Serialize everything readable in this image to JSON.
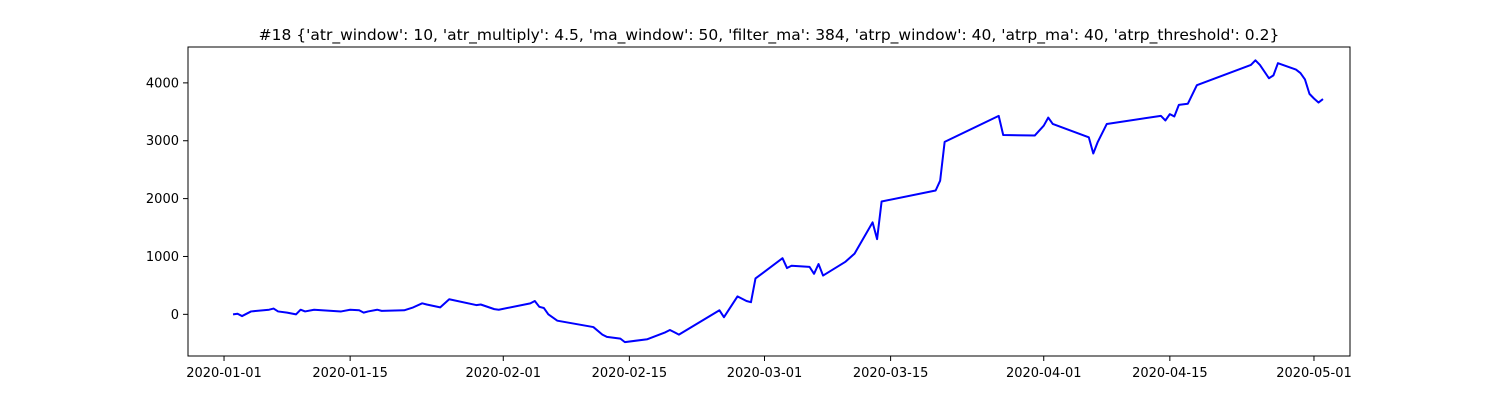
{
  "chart_data": {
    "type": "line",
    "title": "#18 {'atr_window': 10, 'atr_multiply': 4.5, 'ma_window': 50, 'filter_ma': 384, 'atrp_window': 40, 'atrp_ma': 40, 'atrp_threshold': 0.2}",
    "xlabel": "",
    "ylabel": "",
    "x_axis_type": "date",
    "xlim": [
      "2019-12-28",
      "2020-05-05"
    ],
    "ylim": [
      -720,
      4620
    ],
    "x_ticks": [
      "2020-01-01",
      "2020-01-15",
      "2020-02-01",
      "2020-02-15",
      "2020-03-01",
      "2020-03-15",
      "2020-04-01",
      "2020-04-15",
      "2020-05-01"
    ],
    "y_ticks": [
      0,
      1000,
      2000,
      3000,
      4000
    ],
    "grid": false,
    "legend": "none",
    "series": [
      {
        "color": "#0000ff",
        "points": [
          [
            "2020-01-02",
            0
          ],
          [
            "2020-01-02T12:00",
            10
          ],
          [
            "2020-01-03",
            -30
          ],
          [
            "2020-01-04",
            50
          ],
          [
            "2020-01-06",
            80
          ],
          [
            "2020-01-06T12:00",
            100
          ],
          [
            "2020-01-07",
            50
          ],
          [
            "2020-01-08",
            30
          ],
          [
            "2020-01-09",
            0
          ],
          [
            "2020-01-09T12:00",
            80
          ],
          [
            "2020-01-10",
            50
          ],
          [
            "2020-01-11",
            80
          ],
          [
            "2020-01-14",
            50
          ],
          [
            "2020-01-15",
            80
          ],
          [
            "2020-01-16",
            70
          ],
          [
            "2020-01-16T12:00",
            30
          ],
          [
            "2020-01-17",
            50
          ],
          [
            "2020-01-18",
            80
          ],
          [
            "2020-01-18T12:00",
            60
          ],
          [
            "2020-01-21",
            70
          ],
          [
            "2020-01-22",
            120
          ],
          [
            "2020-01-23",
            190
          ],
          [
            "2020-01-23T12:00",
            170
          ],
          [
            "2020-01-25",
            120
          ],
          [
            "2020-01-26",
            260
          ],
          [
            "2020-01-29",
            160
          ],
          [
            "2020-01-29T12:00",
            170
          ],
          [
            "2020-01-31",
            90
          ],
          [
            "2020-01-31T12:00",
            80
          ],
          [
            "2020-02-04",
            190
          ],
          [
            "2020-02-04T12:00",
            230
          ],
          [
            "2020-02-05",
            130
          ],
          [
            "2020-02-05T12:00",
            110
          ],
          [
            "2020-02-06",
            0
          ],
          [
            "2020-02-07",
            -110
          ],
          [
            "2020-02-11",
            -220
          ],
          [
            "2020-02-12",
            -350
          ],
          [
            "2020-02-12T12:00",
            -390
          ],
          [
            "2020-02-14",
            -420
          ],
          [
            "2020-02-14T12:00",
            -480
          ],
          [
            "2020-02-17",
            -430
          ],
          [
            "2020-02-19",
            -310
          ],
          [
            "2020-02-19T12:00",
            -270
          ],
          [
            "2020-02-20",
            -310
          ],
          [
            "2020-02-20T12:00",
            -350
          ],
          [
            "2020-02-25",
            70
          ],
          [
            "2020-02-25T12:00",
            -50
          ],
          [
            "2020-02-27",
            310
          ],
          [
            "2020-02-28",
            230
          ],
          [
            "2020-02-28T12:00",
            210
          ],
          [
            "2020-02-29",
            620
          ],
          [
            "2020-03-03",
            970
          ],
          [
            "2020-03-03T12:00",
            800
          ],
          [
            "2020-03-04",
            840
          ],
          [
            "2020-03-06",
            820
          ],
          [
            "2020-03-06T12:00",
            700
          ],
          [
            "2020-03-07",
            870
          ],
          [
            "2020-03-07T12:00",
            670
          ],
          [
            "2020-03-10",
            910
          ],
          [
            "2020-03-11",
            1050
          ],
          [
            "2020-03-13",
            1590
          ],
          [
            "2020-03-13T12:00",
            1300
          ],
          [
            "2020-03-14",
            1950
          ],
          [
            "2020-03-20",
            2140
          ],
          [
            "2020-03-20T12:00",
            2310
          ],
          [
            "2020-03-21",
            2980
          ],
          [
            "2020-03-27",
            3430
          ],
          [
            "2020-03-27T12:00",
            3100
          ],
          [
            "2020-03-31",
            3090
          ],
          [
            "2020-04-01",
            3260
          ],
          [
            "2020-04-01T12:00",
            3400
          ],
          [
            "2020-04-02",
            3290
          ],
          [
            "2020-04-06",
            3060
          ],
          [
            "2020-04-06T12:00",
            2780
          ],
          [
            "2020-04-07",
            2980
          ],
          [
            "2020-04-08",
            3290
          ],
          [
            "2020-04-14",
            3430
          ],
          [
            "2020-04-14T12:00",
            3350
          ],
          [
            "2020-04-15",
            3460
          ],
          [
            "2020-04-15T12:00",
            3420
          ],
          [
            "2020-04-16",
            3620
          ],
          [
            "2020-04-17",
            3640
          ],
          [
            "2020-04-18",
            3960
          ],
          [
            "2020-04-24",
            4310
          ],
          [
            "2020-04-24T12:00",
            4390
          ],
          [
            "2020-04-25",
            4310
          ],
          [
            "2020-04-26",
            4080
          ],
          [
            "2020-04-26T12:00",
            4130
          ],
          [
            "2020-04-27",
            4340
          ],
          [
            "2020-04-29",
            4230
          ],
          [
            "2020-04-29T12:00",
            4170
          ],
          [
            "2020-04-30",
            4060
          ],
          [
            "2020-04-30T12:00",
            3810
          ],
          [
            "2020-05-01",
            3730
          ],
          [
            "2020-05-01T12:00",
            3660
          ],
          [
            "2020-05-02",
            3720
          ]
        ]
      }
    ]
  }
}
